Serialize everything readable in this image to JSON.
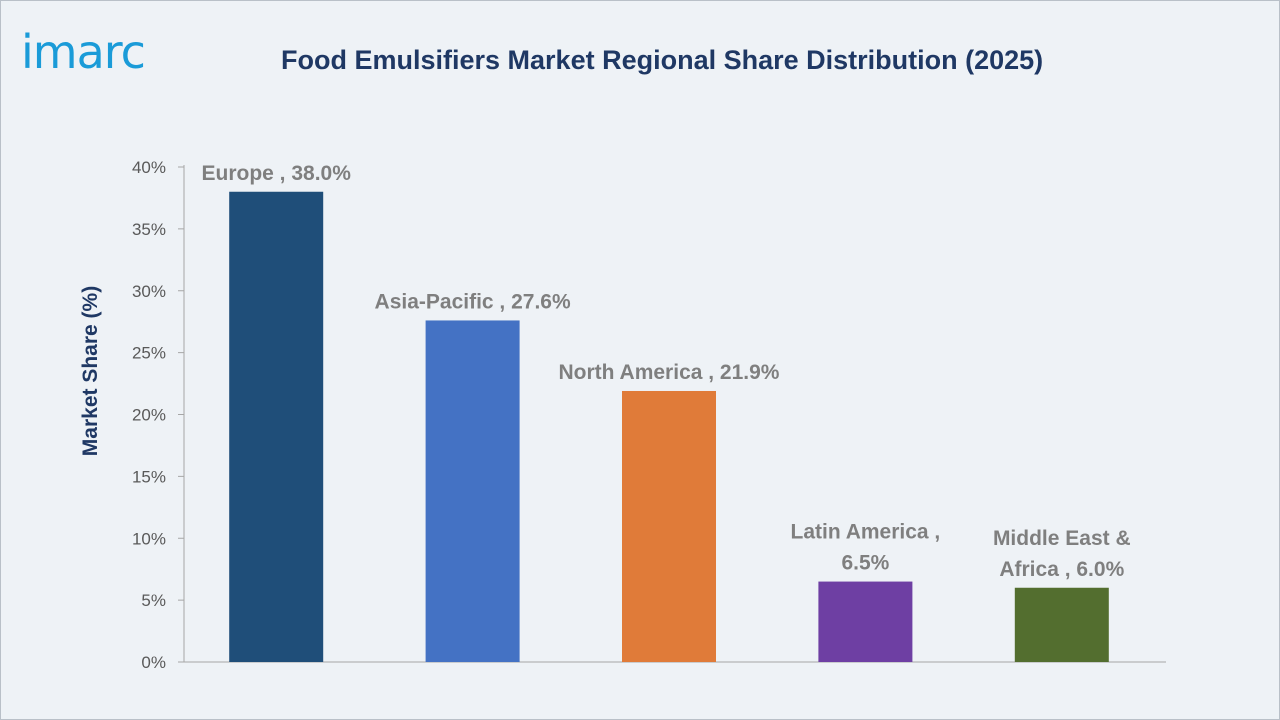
{
  "header": {
    "logo_text": "imarc",
    "title": "Food Emulsifiers Market Regional Share Distribution (2025)"
  },
  "colors": {
    "background": "#eef2f6",
    "title": "#1f3864",
    "logo": "#1a9bd8",
    "label": "#7f7f7f"
  },
  "chart_data": {
    "type": "bar",
    "title": "Food Emulsifiers Market Regional Share Distribution (2025)",
    "xlabel": "",
    "ylabel": "Market Share (%)",
    "ylim": [
      0,
      40
    ],
    "yticks": [
      0,
      5,
      10,
      15,
      20,
      25,
      30,
      35,
      40
    ],
    "ytick_labels": [
      "0%",
      "5%",
      "10%",
      "15%",
      "20%",
      "25%",
      "30%",
      "35%",
      "40%"
    ],
    "grid": false,
    "legend": "none",
    "categories": [
      "Europe",
      "Asia-Pacific",
      "North America",
      "Latin America",
      "Middle East & Africa"
    ],
    "values": [
      38.0,
      27.6,
      21.9,
      6.5,
      6.0
    ],
    "bar_colors": [
      "#1f4e79",
      "#4472c4",
      "#e07b39",
      "#6e3fa3",
      "#536e2f"
    ],
    "data_labels": [
      [
        "Europe , 38.0%"
      ],
      [
        "Asia-Pacific , 27.6%"
      ],
      [
        "North America , 21.9%"
      ],
      [
        "Latin America ,",
        "6.5%"
      ],
      [
        "Middle East &",
        "Africa , 6.0%"
      ]
    ]
  }
}
